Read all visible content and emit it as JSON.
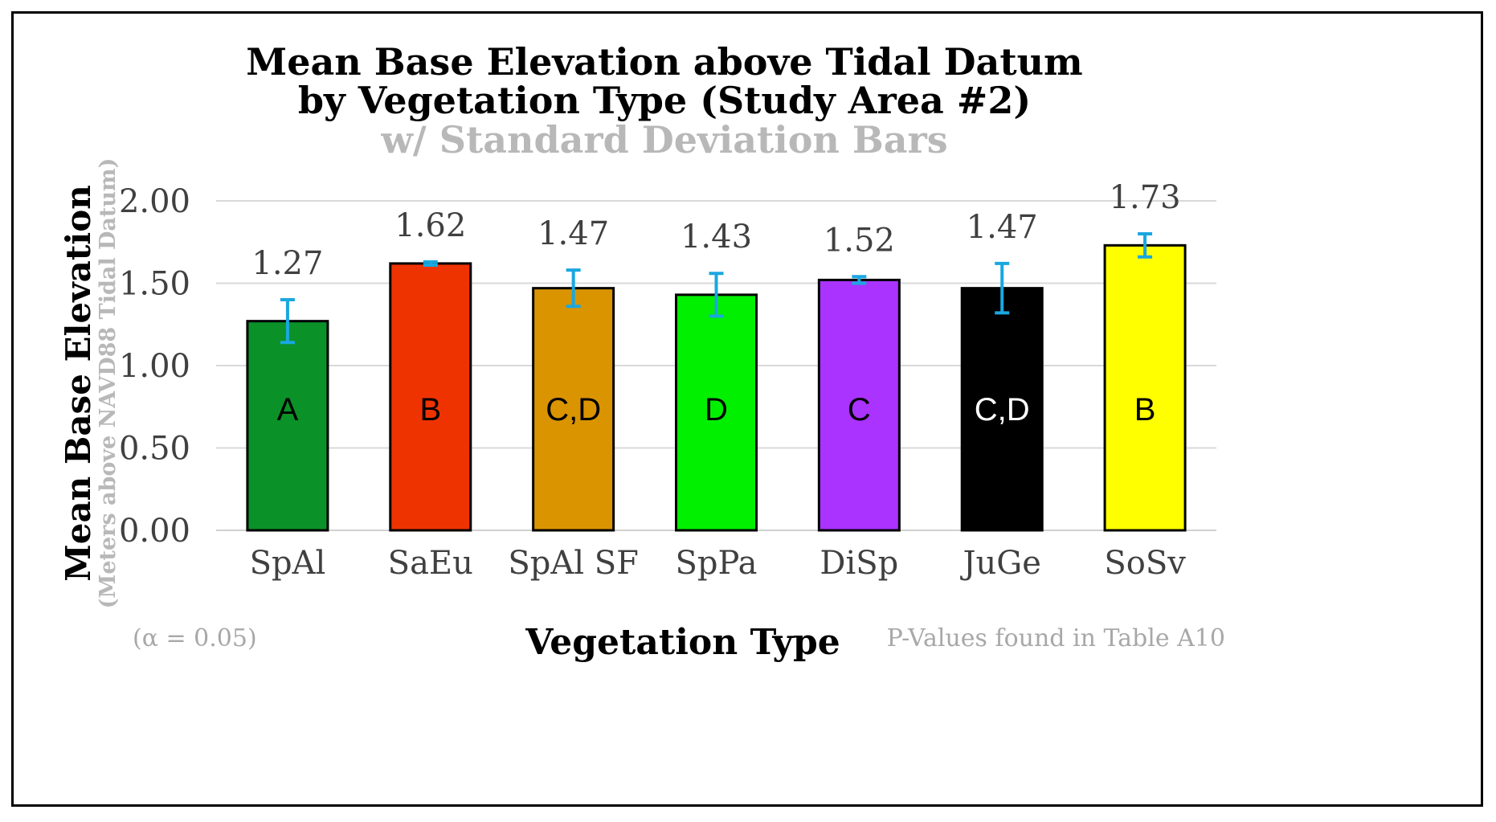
{
  "chart_data": {
    "type": "bar",
    "title_line1": "Mean Base Elevation above Tidal Datum",
    "title_line2": "by Vegetation Type (Study Area #2)",
    "subtitle": "w/ Standard Deviation Bars",
    "ylabel": "Mean Base Elevation",
    "ylabel_sub": "(Meters above NAVD88 Tidal Datum)",
    "xlabel": "Vegetation Type",
    "ylim": [
      0,
      2.0
    ],
    "yticks": [
      0,
      0.5,
      1.0,
      1.5,
      2.0
    ],
    "ytick_labels": [
      "0.00",
      "0.50",
      "1.00",
      "1.50",
      "2.00"
    ],
    "grid": true,
    "categories": [
      "SpAl",
      "SaEu",
      "SpAl SF",
      "SpPa",
      "DiSp",
      "JuGe",
      "SoSv"
    ],
    "values": [
      1.27,
      1.62,
      1.47,
      1.43,
      1.52,
      1.47,
      1.73
    ],
    "value_labels": [
      "1.27",
      "1.62",
      "1.47",
      "1.43",
      "1.52",
      "1.47",
      "1.73"
    ],
    "std_dev": [
      0.13,
      0.01,
      0.11,
      0.13,
      0.02,
      0.15,
      0.07
    ],
    "groups": [
      "A",
      "B",
      "C,D",
      "D",
      "C",
      "C,D",
      "B"
    ],
    "colors": [
      "#0a9128",
      "#ee3300",
      "#d99400",
      "#00f000",
      "#aa33ff",
      "#000000",
      "#ffff00"
    ],
    "group_text_colors": [
      "#000000",
      "#000000",
      "#000000",
      "#000000",
      "#000000",
      "#ffffff",
      "#000000"
    ],
    "error_bar_color": "#1aa7e0",
    "bar_edge_color": "#000000"
  },
  "footer": {
    "alpha_note": "(α = 0.05)",
    "pvalue_note": "P-Values found in Table A10"
  }
}
